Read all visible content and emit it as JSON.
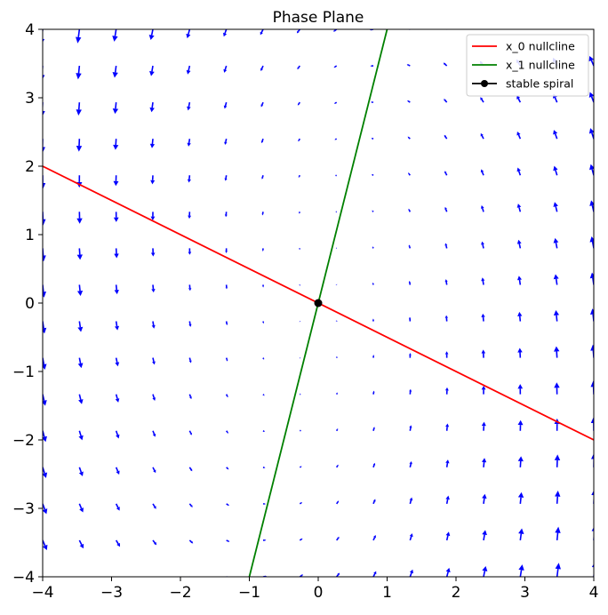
{
  "chart_data": {
    "type": "quiver",
    "title": "Phase Plane",
    "xlabel": "",
    "ylabel": "",
    "xlim": [
      -4,
      4
    ],
    "ylim": [
      -4,
      4
    ],
    "x_ticks": [
      "−4",
      "−3",
      "−2",
      "−1",
      "0",
      "1",
      "2",
      "3",
      "4"
    ],
    "y_ticks": [
      "−4",
      "−3",
      "−2",
      "−1",
      "0",
      "1",
      "2",
      "3",
      "4"
    ],
    "x_tick_values": [
      -4,
      -3,
      -2,
      -1,
      0,
      1,
      2,
      3,
      4
    ],
    "y_tick_values": [
      -4,
      -3,
      -2,
      -1,
      0,
      1,
      2,
      3,
      4
    ],
    "grid": false,
    "legend_position": "top-right",
    "vector_field": {
      "color": "#0000ff",
      "grid_range": [
        -4,
        4
      ],
      "grid_count": 16,
      "jacobian": [
        [
          -0.5,
          -1.0
        ],
        [
          4.0,
          -1.0
        ]
      ]
    },
    "series": [
      {
        "name": "x_0 nullcline",
        "kind": "line",
        "color": "#ff0000",
        "x": [
          -4,
          4
        ],
        "y": [
          2,
          -2
        ]
      },
      {
        "name": "x_1 nullcline",
        "kind": "line",
        "color": "#008000",
        "x": [
          -1,
          1
        ],
        "y": [
          -4,
          4
        ]
      },
      {
        "name": "stable spiral",
        "kind": "point",
        "color": "#000000",
        "x": [
          0
        ],
        "y": [
          0
        ]
      }
    ]
  }
}
